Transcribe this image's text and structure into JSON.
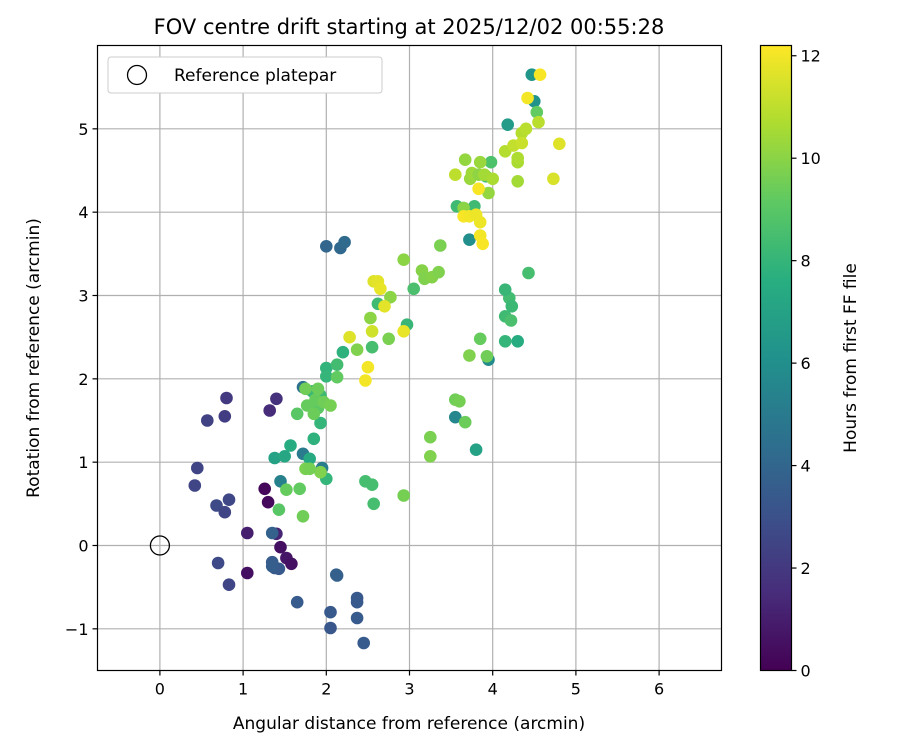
{
  "chart_data": {
    "type": "scatter",
    "title": "FOV centre drift starting at 2025/12/02 00:55:28",
    "xlabel": "Angular distance from reference (arcmin)",
    "ylabel": "Rotation from reference (arcmin)",
    "xlim": [
      -0.75,
      6.75
    ],
    "ylim": [
      -1.5,
      6.0
    ],
    "x_ticks": [
      0,
      1,
      2,
      3,
      4,
      5,
      6
    ],
    "y_ticks": [
      -1,
      0,
      1,
      2,
      3,
      4,
      5
    ],
    "grid": true,
    "legend": {
      "position": "top-left",
      "entries": [
        "Reference platepar"
      ]
    },
    "reference": {
      "label": "Reference platepar",
      "x": 0,
      "y": 0
    },
    "colorbar": {
      "label": "Hours from first FF file",
      "range": [
        0,
        12.2
      ],
      "ticks": [
        0,
        2,
        4,
        6,
        8,
        10,
        12
      ],
      "colormap": "viridis"
    },
    "points": [
      [
        1.26,
        0.68,
        0.2
      ],
      [
        1.3,
        0.52,
        0.3
      ],
      [
        1.45,
        -0.02,
        0.5
      ],
      [
        1.52,
        -0.15,
        0.7
      ],
      [
        1.58,
        -0.22,
        0.6
      ],
      [
        1.05,
        -0.33,
        0.5
      ],
      [
        1.05,
        0.15,
        1.0
      ],
      [
        1.4,
        0.14,
        1.2
      ],
      [
        1.32,
        1.62,
        1.5
      ],
      [
        1.4,
        1.76,
        1.7
      ],
      [
        0.8,
        1.77,
        2.0
      ],
      [
        0.78,
        1.55,
        2.2
      ],
      [
        0.57,
        1.5,
        2.4
      ],
      [
        0.45,
        0.93,
        2.5
      ],
      [
        0.42,
        0.72,
        2.5
      ],
      [
        0.83,
        0.55,
        2.6
      ],
      [
        0.68,
        0.48,
        2.7
      ],
      [
        0.78,
        0.4,
        2.5
      ],
      [
        0.7,
        -0.21,
        2.7
      ],
      [
        0.83,
        -0.47,
        2.5
      ],
      [
        1.35,
        -0.2,
        3.5
      ],
      [
        1.38,
        -0.27,
        3.3
      ],
      [
        1.43,
        -0.28,
        3.4
      ],
      [
        1.35,
        -0.25,
        3.6
      ],
      [
        1.65,
        -0.68,
        3.5
      ],
      [
        2.05,
        -0.8,
        3.4
      ],
      [
        2.05,
        -0.99,
        3.3
      ],
      [
        2.37,
        -0.63,
        3.4
      ],
      [
        2.37,
        -0.68,
        3.4
      ],
      [
        2.37,
        -0.87,
        3.5
      ],
      [
        2.45,
        -1.17,
        3.5
      ],
      [
        2.12,
        -0.35,
        3.7
      ],
      [
        2.13,
        -0.36,
        3.7
      ],
      [
        1.35,
        0.15,
        3.8
      ],
      [
        2.0,
        3.59,
        4.0
      ],
      [
        2.17,
        3.57,
        4.1
      ],
      [
        2.22,
        3.64,
        4.2
      ],
      [
        1.72,
        1.9,
        4.5
      ],
      [
        1.72,
        1.1,
        5.0
      ],
      [
        1.95,
        0.93,
        5.1
      ],
      [
        1.45,
        0.77,
        5.3
      ],
      [
        3.55,
        1.54,
        5.6
      ],
      [
        3.95,
        2.23,
        5.8
      ],
      [
        3.72,
        3.67,
        6.0
      ],
      [
        4.5,
        5.33,
        6.2
      ],
      [
        4.47,
        5.65,
        6.3
      ],
      [
        4.18,
        5.05,
        6.6
      ],
      [
        1.38,
        1.05,
        7.0
      ],
      [
        1.5,
        1.07,
        7.2
      ],
      [
        1.57,
        1.2,
        7.5
      ],
      [
        1.8,
        1.04,
        7.4
      ],
      [
        1.85,
        1.28,
        7.8
      ],
      [
        1.93,
        1.47,
        8.0
      ],
      [
        1.83,
        1.85,
        8.2
      ],
      [
        1.93,
        1.8,
        8.3
      ],
      [
        2.0,
        2.13,
        7.9
      ],
      [
        2.0,
        2.03,
        8.0
      ],
      [
        2.13,
        2.17,
        8.4
      ],
      [
        2.2,
        2.32,
        7.8
      ],
      [
        2.55,
        2.38,
        8.5
      ],
      [
        2.62,
        2.9,
        8.3
      ],
      [
        2.97,
        2.65,
        8.1
      ],
      [
        3.05,
        3.08,
        8.6
      ],
      [
        2.0,
        0.8,
        8.0
      ],
      [
        2.47,
        0.77,
        8.5
      ],
      [
        2.55,
        0.73,
        8.5
      ],
      [
        2.57,
        0.5,
        8.5
      ],
      [
        3.8,
        1.15,
        7.0
      ],
      [
        4.15,
        2.75,
        8.3
      ],
      [
        4.2,
        2.97,
        8.4
      ],
      [
        4.23,
        2.87,
        8.2
      ],
      [
        4.15,
        3.07,
        8.1
      ],
      [
        4.3,
        2.45,
        7.5
      ],
      [
        4.15,
        2.45,
        8.0
      ],
      [
        4.43,
        3.27,
        8.5
      ],
      [
        4.22,
        2.7,
        8.6
      ],
      [
        3.57,
        4.07,
        8.3
      ],
      [
        3.65,
        4.05,
        8.4
      ],
      [
        3.78,
        4.07,
        8.3
      ],
      [
        3.92,
        4.43,
        8.6
      ],
      [
        3.98,
        4.6,
        8.7
      ],
      [
        4.53,
        5.2,
        9.2
      ],
      [
        1.43,
        0.43,
        9.0
      ],
      [
        1.52,
        0.67,
        9.3
      ],
      [
        1.68,
        0.68,
        9.2
      ],
      [
        1.72,
        0.35,
        9.5
      ],
      [
        1.65,
        1.58,
        9.0
      ],
      [
        1.9,
        1.65,
        9.1
      ],
      [
        1.77,
        1.68,
        9.3
      ],
      [
        1.85,
        1.58,
        9.4
      ],
      [
        1.87,
        1.75,
        9.3
      ],
      [
        1.97,
        1.72,
        9.5
      ],
      [
        2.05,
        1.68,
        9.6
      ],
      [
        1.75,
        1.88,
        9.5
      ],
      [
        1.9,
        1.88,
        9.4
      ],
      [
        2.13,
        2.02,
        9.2
      ],
      [
        1.75,
        0.92,
        9.7
      ],
      [
        1.93,
        0.88,
        9.8
      ],
      [
        1.8,
        0.92,
        9.6
      ],
      [
        2.93,
        0.6,
        9.6
      ],
      [
        3.25,
        1.07,
        9.8
      ],
      [
        3.25,
        1.3,
        9.7
      ],
      [
        3.55,
        1.75,
        9.5
      ],
      [
        3.6,
        1.73,
        9.6
      ],
      [
        3.67,
        1.48,
        9.4
      ],
      [
        3.72,
        2.28,
        9.8
      ],
      [
        3.85,
        2.48,
        9.3
      ],
      [
        3.93,
        2.27,
        9.5
      ],
      [
        2.37,
        2.35,
        9.8
      ],
      [
        2.53,
        2.73,
        10.0
      ],
      [
        2.75,
        2.48,
        9.7
      ],
      [
        2.77,
        2.98,
        10.0
      ],
      [
        2.93,
        3.43,
        10.0
      ],
      [
        3.15,
        3.3,
        9.9
      ],
      [
        3.18,
        3.2,
        9.8
      ],
      [
        3.27,
        3.22,
        9.9
      ],
      [
        3.35,
        3.28,
        9.8
      ],
      [
        3.37,
        3.6,
        9.7
      ],
      [
        3.65,
        4.05,
        10.0
      ],
      [
        3.67,
        4.63,
        10.2
      ],
      [
        3.73,
        4.4,
        10.3
      ],
      [
        3.75,
        4.47,
        10.4
      ],
      [
        3.85,
        4.6,
        10.3
      ],
      [
        3.83,
        4.45,
        10.1
      ],
      [
        3.9,
        4.45,
        10.5
      ],
      [
        3.95,
        4.23,
        10.2
      ],
      [
        4.0,
        4.4,
        10.6
      ],
      [
        4.15,
        4.73,
        10.8
      ],
      [
        4.3,
        4.37,
        10.5
      ],
      [
        4.3,
        4.6,
        10.6
      ],
      [
        4.3,
        4.65,
        10.7
      ],
      [
        4.35,
        4.95,
        10.8
      ],
      [
        4.4,
        5.0,
        10.9
      ],
      [
        4.55,
        5.08,
        10.9
      ],
      [
        3.55,
        4.45,
        11.0
      ],
      [
        4.25,
        4.8,
        11.1
      ],
      [
        4.35,
        4.83,
        11.2
      ],
      [
        4.73,
        4.4,
        11.5
      ],
      [
        4.8,
        4.82,
        11.6
      ],
      [
        2.55,
        2.57,
        11.3
      ],
      [
        2.57,
        3.17,
        11.6
      ],
      [
        2.62,
        3.17,
        11.7
      ],
      [
        2.65,
        3.08,
        11.8
      ],
      [
        2.7,
        2.87,
        11.7
      ],
      [
        2.28,
        2.5,
        11.6
      ],
      [
        2.93,
        2.57,
        11.8
      ],
      [
        2.47,
        1.98,
        12.0
      ],
      [
        2.5,
        2.14,
        12.0
      ],
      [
        3.65,
        3.95,
        12.1
      ],
      [
        3.72,
        3.95,
        12.0
      ],
      [
        3.8,
        3.97,
        11.9
      ],
      [
        3.85,
        3.72,
        12.0
      ],
      [
        3.88,
        3.62,
        12.1
      ],
      [
        3.85,
        3.88,
        11.9
      ],
      [
        3.83,
        4.28,
        12.1
      ],
      [
        4.42,
        5.37,
        12.0
      ],
      [
        4.57,
        5.65,
        12.1
      ]
    ]
  }
}
